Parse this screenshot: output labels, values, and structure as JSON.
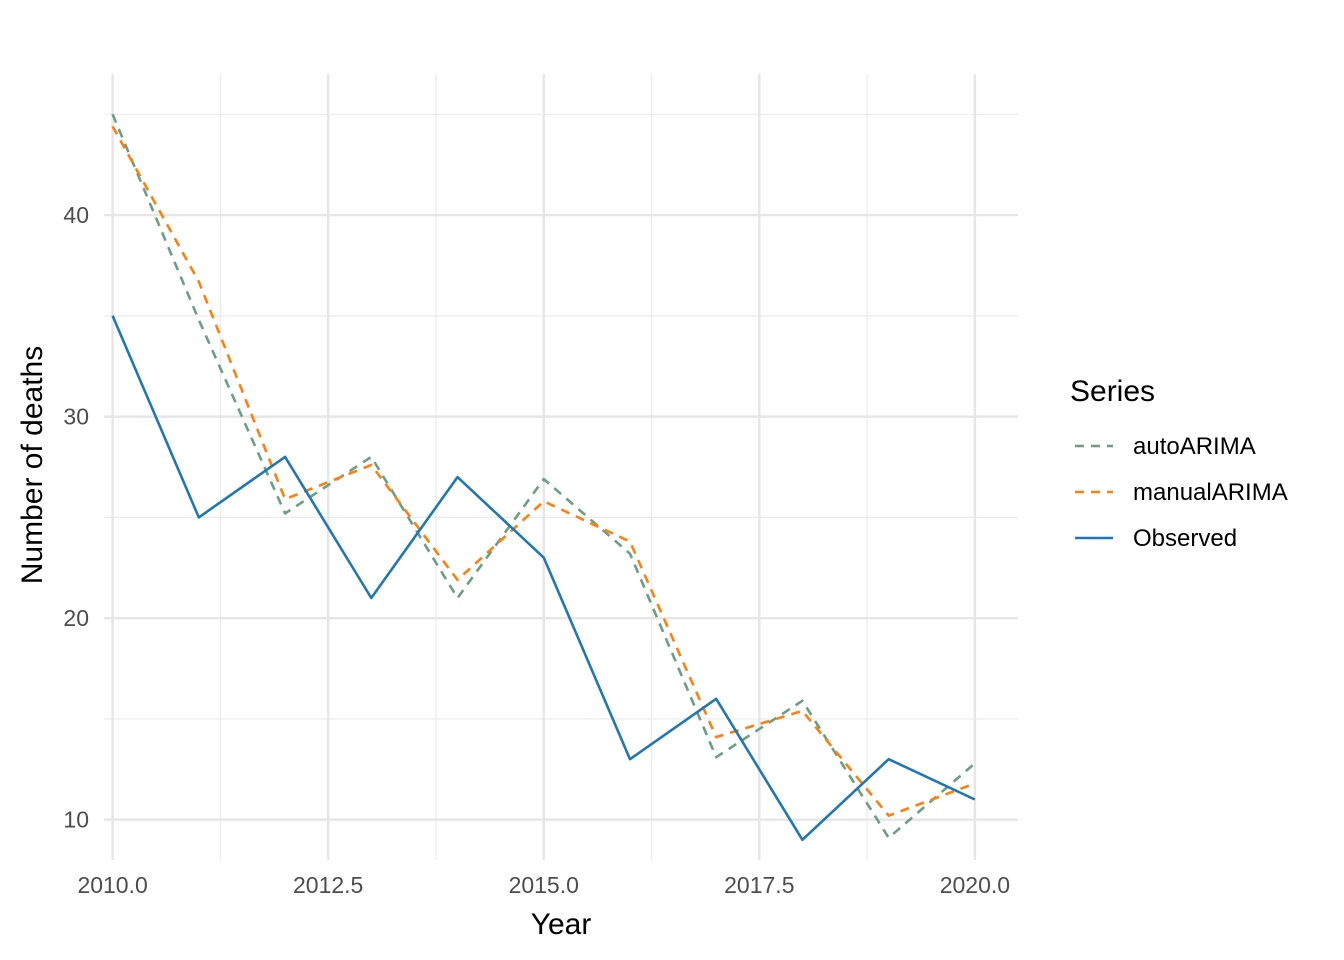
{
  "chart_data": {
    "type": "line",
    "xlabel": "Year",
    "ylabel": "Number of deaths",
    "xlim": [
      2009.9,
      2020.5
    ],
    "ylim": [
      8.0,
      47.0
    ],
    "x_ticks": [
      2010.0,
      2012.5,
      2015.0,
      2017.5,
      2020.0
    ],
    "x_tick_labels": [
      "2010.0",
      "2012.5",
      "2015.0",
      "2017.5",
      "2020.0"
    ],
    "x_minor_ticks": [
      2011.25,
      2013.75,
      2016.25,
      2018.75
    ],
    "y_ticks": [
      10,
      20,
      30,
      40
    ],
    "y_tick_labels": [
      "10",
      "20",
      "30",
      "40"
    ],
    "y_minor_ticks": [
      15,
      25,
      35,
      45
    ],
    "grid": true,
    "legend_placement": "right",
    "legend_title": "Series",
    "x": [
      2010,
      2011,
      2012,
      2013,
      2014,
      2015,
      2016,
      2017,
      2018,
      2019,
      2020
    ],
    "series": [
      {
        "name": "autoARIMA",
        "color": "#6a9f85",
        "dash": "dashed",
        "values": [
          45.0,
          34.8,
          25.2,
          28.0,
          21.0,
          26.9,
          23.2,
          13.1,
          15.9,
          9.1,
          12.8
        ]
      },
      {
        "name": "manualARIMA",
        "color": "#ff7f0e",
        "dash": "dashed",
        "values": [
          44.4,
          36.7,
          25.9,
          27.6,
          21.9,
          25.8,
          23.8,
          14.1,
          15.4,
          10.2,
          11.8
        ]
      },
      {
        "name": "Observed",
        "color": "#1f77b4",
        "dash": "solid",
        "values": [
          35,
          25,
          28,
          21,
          27,
          23,
          13,
          16,
          9,
          13,
          11
        ]
      }
    ]
  }
}
